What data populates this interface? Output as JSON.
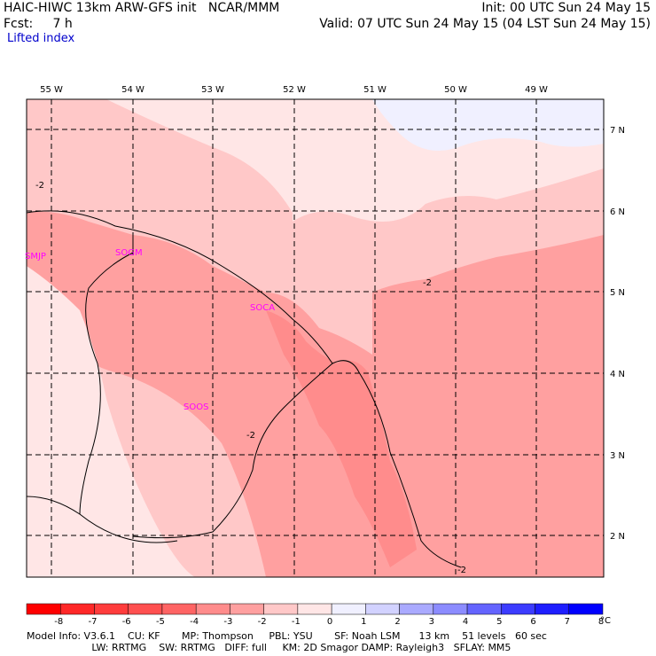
{
  "header": {
    "line1_left": "HAIC-HIWC 13km ARW-GFS init   NCAR/MMM",
    "line2_left": "Fcst:     7 h",
    "line1_right": "Init: 00 UTC Sun 24 May 15",
    "line2_right": "Valid: 07 UTC Sun 24 May 15 (04 LST Sun 24 May 15)",
    "field": "Lifted index"
  },
  "lon_labels": [
    "55 W",
    "54 W",
    "53 W",
    "52 W",
    "51 W",
    "50 W",
    "49 W"
  ],
  "lat_labels": [
    "7 N",
    "6 N",
    "5 N",
    "4 N",
    "3 N",
    "2 N"
  ],
  "stations": [
    "SMJP",
    "SOGM",
    "SOCA",
    "SOOS"
  ],
  "contour_labels": [
    "-2",
    "-2",
    "-2",
    "-2"
  ],
  "colorbar": {
    "labels": [
      "-8",
      "-7",
      "-6",
      "-5",
      "-4",
      "-3",
      "-2",
      "-1",
      "0",
      "1",
      "2",
      "3",
      "4",
      "5",
      "6",
      "7",
      "8"
    ],
    "unit": "°C",
    "colors": [
      "#ff0000",
      "#ff2828",
      "#ff3c3c",
      "#ff5050",
      "#ff6464",
      "#ff8c8c",
      "#ffa0a0",
      "#ffc8c8",
      "#ffe6e6",
      "#f0f0ff",
      "#d2d2ff",
      "#aaaaff",
      "#8c8cff",
      "#6464ff",
      "#3c3cff",
      "#1e1eff",
      "#0000ff"
    ]
  },
  "footer": {
    "line1": "Model Info: V3.6.1    CU: KF       MP: Thompson     PBL: YSU       SF: Noah LSM      13 km    51 levels   60 sec",
    "line2": "                     LW: RRTMG    SW: RRTMG   DIFF: full     KM: 2D Smagor DAMP: Rayleigh3   SFLAY: MM5"
  }
}
